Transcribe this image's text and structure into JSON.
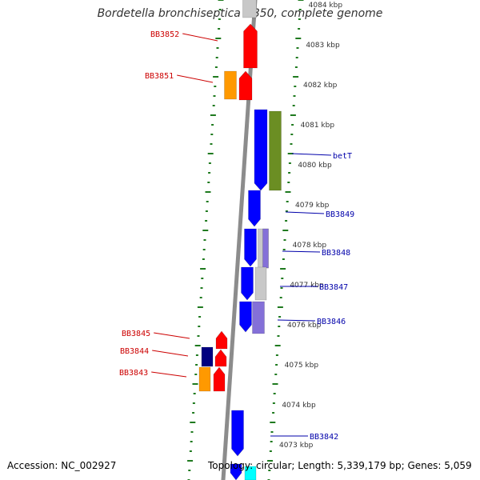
{
  "title": "Bordetella bronchiseptica RB50, complete genome",
  "footer": {
    "accession": "Accession: NC_002927",
    "summary": "Topology: circular; Length: 5,339,179 bp; Genes: 5,059"
  },
  "colors": {
    "backbone": "#8c8c8c",
    "tick": "#1f7a1f",
    "forward_label": "#cc0000",
    "reverse_label": "#0000aa",
    "red": "#ff0000",
    "orange": "#ff9900",
    "blue": "#0000ff",
    "olive": "#6b8e23",
    "lightgray": "#c8c8c8",
    "lavender": "#8470d8",
    "navy": "#000080",
    "cyan": "#00ffff"
  },
  "kbp_labels": [
    "4084 kbp",
    "4083 kbp",
    "4082 kbp",
    "4081 kbp",
    "4080 kbp",
    "4079 kbp",
    "4078 kbp",
    "4077 kbp",
    "4076 kbp",
    "4075 kbp",
    "4074 kbp",
    "4073 kbp"
  ],
  "forward_genes": [
    {
      "name": "BB3852"
    },
    {
      "name": "BB3851"
    },
    {
      "name": "BB3845"
    },
    {
      "name": "BB3844"
    },
    {
      "name": "BB3843"
    }
  ],
  "reverse_genes": [
    {
      "name": "betT"
    },
    {
      "name": "BB3849"
    },
    {
      "name": "BB3848"
    },
    {
      "name": "BB3847"
    },
    {
      "name": "BB3846"
    },
    {
      "name": "BB3842"
    }
  ]
}
